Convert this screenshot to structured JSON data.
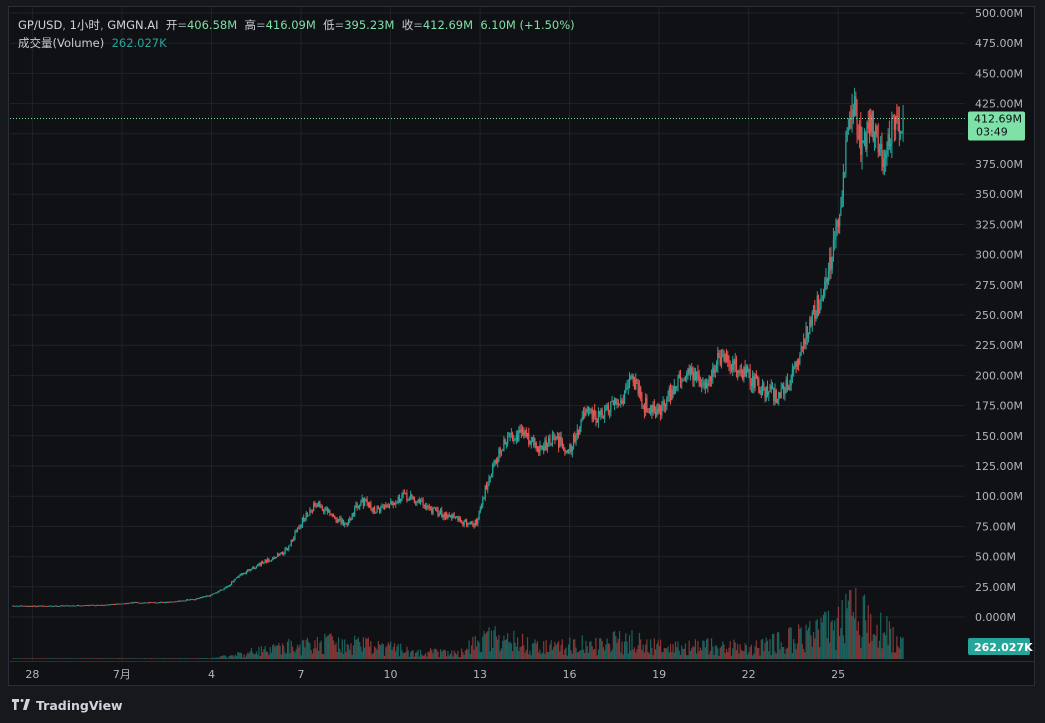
{
  "header": {
    "symbol": "GP/USD",
    "interval": "1小时",
    "exchange": "GMGN.AI",
    "open_label": "开",
    "open_value": "406.58M",
    "high_label": "高",
    "high_value": "416.09M",
    "low_label": "低",
    "low_value": "395.23M",
    "close_label": "收",
    "close_value": "412.69M",
    "change": "6.10M (+1.50%)",
    "volume_label": "成交量(Volume)",
    "volume_value": "262.027K"
  },
  "price_tag": {
    "value": "412.69M",
    "countdown": "03:49"
  },
  "volume_tag": "262.027K",
  "footer": {
    "brand": "TradingView",
    "logo_icon": "tradingview-logo-icon"
  },
  "colors": {
    "up": "#26a69a",
    "down": "#ef5350",
    "background": "#101114",
    "grid": "#1f2229",
    "price_tag_bg": "#7ee2a8",
    "marker_green": "#7fdca0",
    "marker_pink": "#f37a90"
  },
  "markers": [
    {
      "name": "marker-green",
      "x": 90.5,
      "y": 40.5,
      "color": "#7fdca0"
    },
    {
      "name": "marker-pink",
      "x": 395.4,
      "y": 200,
      "color": "#f37a90"
    }
  ],
  "chart_data": {
    "type": "candlestick",
    "y_axis_labels": [
      "500.00M",
      "475.00M",
      "450.00M",
      "425.00M",
      "375.00M",
      "350.00M",
      "325.00M",
      "300.00M",
      "275.00M",
      "250.00M",
      "225.00M",
      "200.00M",
      "175.00M",
      "150.00M",
      "125.00M",
      "100.00M",
      "75.00M",
      "50.00M",
      "25.00M",
      "0.000M"
    ],
    "y_axis_values": [
      500,
      475,
      450,
      425,
      375,
      350,
      325,
      300,
      275,
      250,
      225,
      200,
      175,
      150,
      125,
      100,
      75,
      50,
      25,
      0
    ],
    "x_axis_labels": [
      "28",
      "7月",
      "4",
      "7",
      "10",
      "13",
      "16",
      "19",
      "22",
      "25"
    ],
    "x_axis_positions": [
      25.5,
      28.5,
      31.5,
      34.5,
      37.5,
      40.5,
      43.5,
      46.5,
      49.5,
      52.5
    ],
    "x_range": [
      24.75,
      56.75
    ],
    "y_range": [
      -35,
      507
    ],
    "last_price": 412.69,
    "close_path": [
      [
        24.8,
        9
      ],
      [
        26,
        9
      ],
      [
        27,
        9.5
      ],
      [
        28,
        10
      ],
      [
        29,
        12
      ],
      [
        30,
        12
      ],
      [
        31,
        15
      ],
      [
        31.5,
        18
      ],
      [
        32,
        25
      ],
      [
        32.5,
        35
      ],
      [
        33,
        42
      ],
      [
        33.5,
        48
      ],
      [
        34,
        55
      ],
      [
        34.5,
        78
      ],
      [
        35,
        95
      ],
      [
        35.5,
        84
      ],
      [
        36,
        76
      ],
      [
        36.5,
        97
      ],
      [
        37,
        88
      ],
      [
        37.5,
        95
      ],
      [
        38,
        100
      ],
      [
        38.5,
        95
      ],
      [
        39,
        87
      ],
      [
        39.5,
        84
      ],
      [
        40,
        78
      ],
      [
        40.4,
        78
      ],
      [
        40.7,
        108
      ],
      [
        41,
        130
      ],
      [
        41.5,
        150
      ],
      [
        42,
        152
      ],
      [
        42.5,
        138
      ],
      [
        43,
        148
      ],
      [
        43.5,
        138
      ],
      [
        44,
        168
      ],
      [
        44.5,
        165
      ],
      [
        45,
        175
      ],
      [
        45.3,
        182
      ],
      [
        45.5,
        200
      ],
      [
        45.8,
        190
      ],
      [
        46,
        176
      ],
      [
        46.5,
        170
      ],
      [
        47,
        190
      ],
      [
        47.5,
        205
      ],
      [
        48,
        190
      ],
      [
        48.5,
        213
      ],
      [
        49,
        208
      ],
      [
        49.5,
        200
      ],
      [
        50,
        188
      ],
      [
        50.5,
        183
      ],
      [
        51,
        200
      ],
      [
        51.5,
        240
      ],
      [
        52,
        270
      ],
      [
        52.3,
        300
      ],
      [
        52.6,
        335
      ],
      [
        52.8,
        400
      ],
      [
        53,
        425
      ],
      [
        53.3,
        390
      ],
      [
        53.6,
        410
      ],
      [
        54,
        380
      ],
      [
        54.3,
        400
      ],
      [
        54.7,
        412.69
      ]
    ],
    "volume_profile": [
      [
        24.8,
        0.3
      ],
      [
        31.5,
        0.5
      ],
      [
        32,
        2
      ],
      [
        33,
        6
      ],
      [
        34,
        9
      ],
      [
        35,
        11
      ],
      [
        36,
        13
      ],
      [
        37,
        9
      ],
      [
        38,
        7
      ],
      [
        39,
        5
      ],
      [
        40,
        5
      ],
      [
        40.5,
        18
      ],
      [
        41.5,
        14
      ],
      [
        42.5,
        9
      ],
      [
        43.5,
        10
      ],
      [
        44.5,
        12
      ],
      [
        45.5,
        14
      ],
      [
        46.5,
        9
      ],
      [
        47.5,
        9
      ],
      [
        48.5,
        10
      ],
      [
        49.5,
        8
      ],
      [
        50.5,
        13
      ],
      [
        51.5,
        18
      ],
      [
        52.5,
        25
      ],
      [
        53,
        35
      ],
      [
        54,
        22
      ],
      [
        54.7,
        10
      ]
    ]
  }
}
